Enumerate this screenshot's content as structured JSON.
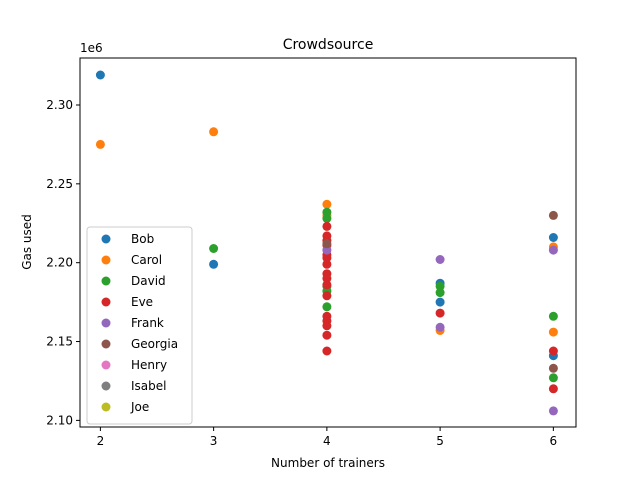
{
  "chart_data": {
    "type": "scatter",
    "title": "Crowdsource",
    "xlabel": "Number of trainers",
    "ylabel": "Gas used",
    "xlim": [
      1.82,
      6.2
    ],
    "ylim": [
      2.0958,
      2.3298
    ],
    "x_ticks": [
      2,
      3,
      4,
      5,
      6
    ],
    "y_ticks": [
      2.1,
      2.15,
      2.2,
      2.25,
      2.3
    ],
    "y_tick_labels": [
      "2.10",
      "2.15",
      "2.20",
      "2.25",
      "2.30"
    ],
    "y_offset_label": "1e6",
    "grid": false,
    "legend_position": "lower-left",
    "series": [
      {
        "name": "Bob",
        "color": "#1f77b4",
        "points": [
          [
            2,
            2.319
          ],
          [
            3,
            2.199
          ],
          [
            5,
            2.187
          ],
          [
            5,
            2.175
          ],
          [
            6,
            2.216
          ],
          [
            6,
            2.141
          ]
        ]
      },
      {
        "name": "Carol",
        "color": "#ff7f0e",
        "points": [
          [
            2,
            2.275
          ],
          [
            3,
            2.283
          ],
          [
            4,
            2.237
          ],
          [
            4,
            2.23
          ],
          [
            5,
            2.157
          ],
          [
            6,
            2.21
          ],
          [
            6,
            2.156
          ]
        ]
      },
      {
        "name": "David",
        "color": "#2ca02c",
        "points": [
          [
            3,
            2.209
          ],
          [
            4,
            2.232
          ],
          [
            4,
            2.228
          ],
          [
            4,
            2.185
          ],
          [
            4,
            2.182
          ],
          [
            4,
            2.172
          ],
          [
            5,
            2.185
          ],
          [
            5,
            2.181
          ],
          [
            6,
            2.166
          ],
          [
            6,
            2.127
          ]
        ]
      },
      {
        "name": "Eve",
        "color": "#d62728",
        "points": [
          [
            4,
            2.223
          ],
          [
            4,
            2.217
          ],
          [
            4,
            2.214
          ],
          [
            4,
            2.211
          ],
          [
            4,
            2.205
          ],
          [
            4,
            2.203
          ],
          [
            4,
            2.199
          ],
          [
            4,
            2.193
          ],
          [
            4,
            2.19
          ],
          [
            4,
            2.186
          ],
          [
            4,
            2.179
          ],
          [
            4,
            2.166
          ],
          [
            4,
            2.163
          ],
          [
            4,
            2.16
          ],
          [
            4,
            2.154
          ],
          [
            4,
            2.144
          ],
          [
            5,
            2.168
          ],
          [
            6,
            2.144
          ],
          [
            6,
            2.12
          ]
        ]
      },
      {
        "name": "Frank",
        "color": "#9467bd",
        "points": [
          [
            4,
            2.208
          ],
          [
            5,
            2.202
          ],
          [
            5,
            2.159
          ],
          [
            6,
            2.208
          ],
          [
            6,
            2.106
          ]
        ]
      },
      {
        "name": "Georgia",
        "color": "#8c564b",
        "points": [
          [
            4,
            2.212
          ],
          [
            6,
            2.23
          ],
          [
            6,
            2.133
          ]
        ]
      },
      {
        "name": "Henry",
        "color": "#e377c2",
        "points": []
      },
      {
        "name": "Isabel",
        "color": "#7f7f7f",
        "points": []
      },
      {
        "name": "Joe",
        "color": "#bcbd22",
        "points": []
      }
    ]
  }
}
